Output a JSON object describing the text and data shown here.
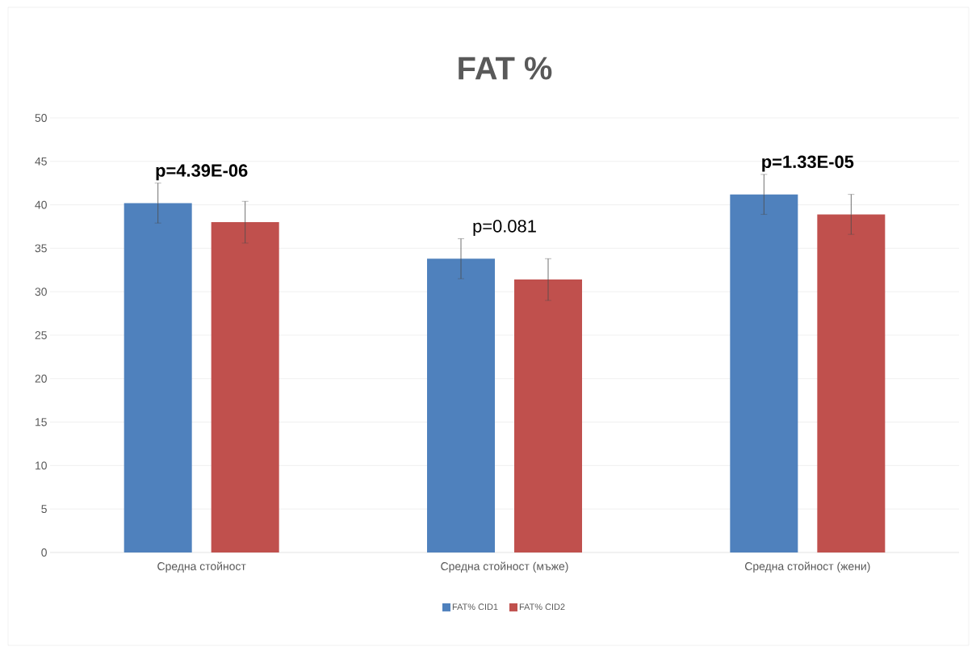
{
  "chart_data": {
    "type": "bar",
    "title": "FAT %",
    "categories": [
      "Средна стойност",
      "Средна стойност (мъже)",
      "Средна стойност (жени)"
    ],
    "series": [
      {
        "name": "FAT% CID1",
        "color": "#4f81bd",
        "values": [
          40.2,
          33.8,
          41.2
        ],
        "errors": [
          2.3,
          2.3,
          2.3
        ]
      },
      {
        "name": "FAT% CID2",
        "color": "#c0504d",
        "values": [
          38.0,
          31.4,
          38.9
        ],
        "errors": [
          2.4,
          2.4,
          2.3
        ]
      }
    ],
    "ylim": [
      0,
      50
    ],
    "yticks": [
      0,
      5,
      10,
      15,
      20,
      25,
      30,
      35,
      40,
      45,
      50
    ],
    "grid": "y",
    "legend": "bottom",
    "annotations": [
      "**p=4.39E-06**",
      "p=0.081",
      "**p=1.33E-05**"
    ]
  }
}
